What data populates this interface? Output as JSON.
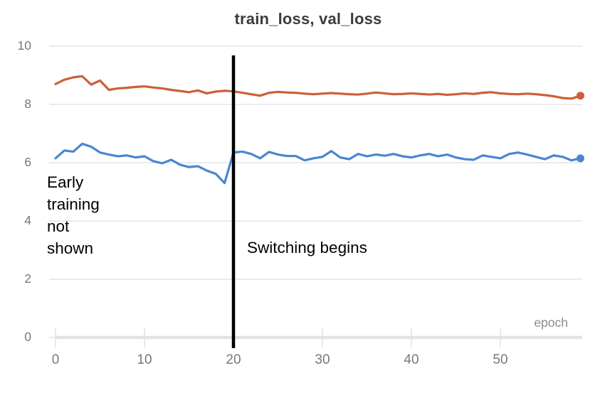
{
  "chart_data": {
    "type": "line",
    "title": "train_loss, val_loss",
    "x_label": "epoch",
    "xlim": [
      0,
      60
    ],
    "ylim": [
      0,
      10
    ],
    "x_ticks": [
      0,
      10,
      20,
      30,
      40,
      50
    ],
    "y_ticks": [
      0,
      2,
      4,
      6,
      8,
      10
    ],
    "grid": "horizontal",
    "legend": "none (series named in title)",
    "x": [
      0,
      1,
      2,
      3,
      4,
      5,
      6,
      7,
      8,
      9,
      10,
      11,
      12,
      13,
      14,
      15,
      16,
      17,
      18,
      19,
      20,
      21,
      22,
      23,
      24,
      25,
      26,
      27,
      28,
      29,
      30,
      31,
      32,
      33,
      34,
      35,
      36,
      37,
      38,
      39,
      40,
      41,
      42,
      43,
      44,
      45,
      46,
      47,
      48,
      49,
      50,
      51,
      52,
      53,
      54,
      55,
      56,
      57,
      58,
      59
    ],
    "series": [
      {
        "name": "train_loss",
        "color": "#4a86d1",
        "end_marker": true,
        "values": [
          6.15,
          6.42,
          6.38,
          6.65,
          6.55,
          6.35,
          6.28,
          6.22,
          6.25,
          6.18,
          6.22,
          6.05,
          5.98,
          6.1,
          5.93,
          5.85,
          5.88,
          5.73,
          5.62,
          5.3,
          6.35,
          6.38,
          6.3,
          6.15,
          6.37,
          6.28,
          6.23,
          6.23,
          6.08,
          6.15,
          6.2,
          6.4,
          6.18,
          6.12,
          6.3,
          6.22,
          6.28,
          6.24,
          6.3,
          6.22,
          6.18,
          6.25,
          6.3,
          6.22,
          6.28,
          6.18,
          6.12,
          6.1,
          6.25,
          6.2,
          6.15,
          6.3,
          6.35,
          6.28,
          6.2,
          6.12,
          6.25,
          6.2,
          6.08,
          6.15
        ]
      },
      {
        "name": "val_loss",
        "color": "#cc5f38",
        "end_marker": true,
        "values": [
          8.7,
          8.85,
          8.93,
          8.97,
          8.68,
          8.82,
          8.5,
          8.55,
          8.57,
          8.6,
          8.62,
          8.58,
          8.55,
          8.5,
          8.46,
          8.42,
          8.48,
          8.38,
          8.44,
          8.47,
          8.45,
          8.4,
          8.35,
          8.3,
          8.4,
          8.43,
          8.41,
          8.4,
          8.37,
          8.35,
          8.37,
          8.39,
          8.37,
          8.35,
          8.34,
          8.37,
          8.41,
          8.38,
          8.35,
          8.36,
          8.38,
          8.36,
          8.34,
          8.36,
          8.33,
          8.35,
          8.38,
          8.36,
          8.4,
          8.42,
          8.38,
          8.36,
          8.35,
          8.37,
          8.35,
          8.32,
          8.28,
          8.22,
          8.2,
          8.3
        ]
      }
    ],
    "annotations": [
      {
        "type": "text",
        "text": "Early\ntraining\nnot\nshown",
        "color": "#000000"
      },
      {
        "type": "vline",
        "x": 20,
        "color": "#000000",
        "label": "Switching begins"
      }
    ],
    "colors": {
      "grid": "#ebebef",
      "axis": "#e3e3e7",
      "tick_label": "#77777f",
      "axis_label": "#8b8b94",
      "title": "#3b3b41"
    }
  }
}
